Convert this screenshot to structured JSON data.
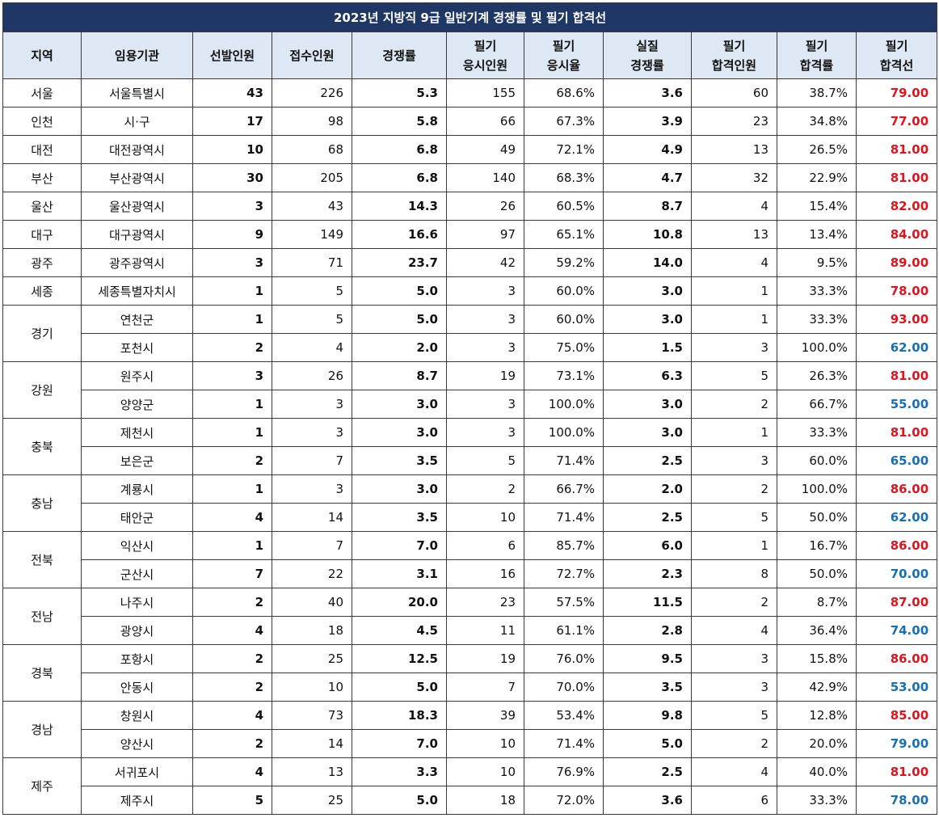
{
  "title": "2023년 지방직 9급 일반기계 경쟁률 및 필기 합격선",
  "headers": [
    [
      "지역"
    ],
    [
      "임용기관"
    ],
    [
      "선발인원"
    ],
    [
      "접수인원"
    ],
    [
      "경쟁률"
    ],
    [
      "필기",
      "응시인원"
    ],
    [
      "필기",
      "응시율"
    ],
    [
      "실질",
      "경쟁률"
    ],
    [
      "필기",
      "합격인원"
    ],
    [
      "필기",
      "합격률"
    ],
    [
      "필기",
      "합격선"
    ]
  ],
  "colors": {
    "title_bg": "#1f3764",
    "header_bg": "#dde8f4",
    "high_cutoff": "#e0141e",
    "low_cutoff": "#1870b4"
  },
  "groups": [
    {
      "region": "서울",
      "rows": [
        {
          "agency": "서울특별시",
          "selected": "43",
          "applied": "226",
          "ratio": "5.3",
          "takers": "155",
          "take_rate": "68.6%",
          "real_ratio": "3.6",
          "passed": "60",
          "pass_rate": "38.7%",
          "cutoff": "79.00",
          "cutoff_tone": "red"
        }
      ]
    },
    {
      "region": "인천",
      "rows": [
        {
          "agency": "시·구",
          "selected": "17",
          "applied": "98",
          "ratio": "5.8",
          "takers": "66",
          "take_rate": "67.3%",
          "real_ratio": "3.9",
          "passed": "23",
          "pass_rate": "34.8%",
          "cutoff": "77.00",
          "cutoff_tone": "red"
        }
      ]
    },
    {
      "region": "대전",
      "rows": [
        {
          "agency": "대전광역시",
          "selected": "10",
          "applied": "68",
          "ratio": "6.8",
          "takers": "49",
          "take_rate": "72.1%",
          "real_ratio": "4.9",
          "passed": "13",
          "pass_rate": "26.5%",
          "cutoff": "81.00",
          "cutoff_tone": "red"
        }
      ]
    },
    {
      "region": "부산",
      "rows": [
        {
          "agency": "부산광역시",
          "selected": "30",
          "applied": "205",
          "ratio": "6.8",
          "takers": "140",
          "take_rate": "68.3%",
          "real_ratio": "4.7",
          "passed": "32",
          "pass_rate": "22.9%",
          "cutoff": "81.00",
          "cutoff_tone": "red"
        }
      ]
    },
    {
      "region": "울산",
      "rows": [
        {
          "agency": "울산광역시",
          "selected": "3",
          "applied": "43",
          "ratio": "14.3",
          "takers": "26",
          "take_rate": "60.5%",
          "real_ratio": "8.7",
          "passed": "4",
          "pass_rate": "15.4%",
          "cutoff": "82.00",
          "cutoff_tone": "red"
        }
      ]
    },
    {
      "region": "대구",
      "rows": [
        {
          "agency": "대구광역시",
          "selected": "9",
          "applied": "149",
          "ratio": "16.6",
          "takers": "97",
          "take_rate": "65.1%",
          "real_ratio": "10.8",
          "passed": "13",
          "pass_rate": "13.4%",
          "cutoff": "84.00",
          "cutoff_tone": "red"
        }
      ]
    },
    {
      "region": "광주",
      "rows": [
        {
          "agency": "광주광역시",
          "selected": "3",
          "applied": "71",
          "ratio": "23.7",
          "takers": "42",
          "take_rate": "59.2%",
          "real_ratio": "14.0",
          "passed": "4",
          "pass_rate": "9.5%",
          "cutoff": "89.00",
          "cutoff_tone": "red"
        }
      ]
    },
    {
      "region": "세종",
      "rows": [
        {
          "agency": "세종특별자치시",
          "selected": "1",
          "applied": "5",
          "ratio": "5.0",
          "takers": "3",
          "take_rate": "60.0%",
          "real_ratio": "3.0",
          "passed": "1",
          "pass_rate": "33.3%",
          "cutoff": "78.00",
          "cutoff_tone": "red"
        }
      ]
    },
    {
      "region": "경기",
      "rows": [
        {
          "agency": "연천군",
          "selected": "1",
          "applied": "5",
          "ratio": "5.0",
          "takers": "3",
          "take_rate": "60.0%",
          "real_ratio": "3.0",
          "passed": "1",
          "pass_rate": "33.3%",
          "cutoff": "93.00",
          "cutoff_tone": "red"
        },
        {
          "agency": "포천시",
          "selected": "2",
          "applied": "4",
          "ratio": "2.0",
          "takers": "3",
          "take_rate": "75.0%",
          "real_ratio": "1.5",
          "passed": "3",
          "pass_rate": "100.0%",
          "cutoff": "62.00",
          "cutoff_tone": "blue"
        }
      ]
    },
    {
      "region": "강원",
      "rows": [
        {
          "agency": "원주시",
          "selected": "3",
          "applied": "26",
          "ratio": "8.7",
          "takers": "19",
          "take_rate": "73.1%",
          "real_ratio": "6.3",
          "passed": "5",
          "pass_rate": "26.3%",
          "cutoff": "81.00",
          "cutoff_tone": "red"
        },
        {
          "agency": "양양군",
          "selected": "1",
          "applied": "3",
          "ratio": "3.0",
          "takers": "3",
          "take_rate": "100.0%",
          "real_ratio": "3.0",
          "passed": "2",
          "pass_rate": "66.7%",
          "cutoff": "55.00",
          "cutoff_tone": "blue"
        }
      ]
    },
    {
      "region": "충북",
      "rows": [
        {
          "agency": "제천시",
          "selected": "1",
          "applied": "3",
          "ratio": "3.0",
          "takers": "3",
          "take_rate": "100.0%",
          "real_ratio": "3.0",
          "passed": "1",
          "pass_rate": "33.3%",
          "cutoff": "81.00",
          "cutoff_tone": "red"
        },
        {
          "agency": "보은군",
          "selected": "2",
          "applied": "7",
          "ratio": "3.5",
          "takers": "5",
          "take_rate": "71.4%",
          "real_ratio": "2.5",
          "passed": "3",
          "pass_rate": "60.0%",
          "cutoff": "65.00",
          "cutoff_tone": "blue"
        }
      ]
    },
    {
      "region": "충남",
      "rows": [
        {
          "agency": "계룡시",
          "selected": "1",
          "applied": "3",
          "ratio": "3.0",
          "takers": "2",
          "take_rate": "66.7%",
          "real_ratio": "2.0",
          "passed": "2",
          "pass_rate": "100.0%",
          "cutoff": "86.00",
          "cutoff_tone": "red"
        },
        {
          "agency": "태안군",
          "selected": "4",
          "applied": "14",
          "ratio": "3.5",
          "takers": "10",
          "take_rate": "71.4%",
          "real_ratio": "2.5",
          "passed": "5",
          "pass_rate": "50.0%",
          "cutoff": "62.00",
          "cutoff_tone": "blue"
        }
      ]
    },
    {
      "region": "전북",
      "rows": [
        {
          "agency": "익산시",
          "selected": "1",
          "applied": "7",
          "ratio": "7.0",
          "takers": "6",
          "take_rate": "85.7%",
          "real_ratio": "6.0",
          "passed": "1",
          "pass_rate": "16.7%",
          "cutoff": "86.00",
          "cutoff_tone": "red"
        },
        {
          "agency": "군산시",
          "selected": "7",
          "applied": "22",
          "ratio": "3.1",
          "takers": "16",
          "take_rate": "72.7%",
          "real_ratio": "2.3",
          "passed": "8",
          "pass_rate": "50.0%",
          "cutoff": "70.00",
          "cutoff_tone": "blue"
        }
      ]
    },
    {
      "region": "전남",
      "rows": [
        {
          "agency": "나주시",
          "selected": "2",
          "applied": "40",
          "ratio": "20.0",
          "takers": "23",
          "take_rate": "57.5%",
          "real_ratio": "11.5",
          "passed": "2",
          "pass_rate": "8.7%",
          "cutoff": "87.00",
          "cutoff_tone": "red"
        },
        {
          "agency": "광양시",
          "selected": "4",
          "applied": "18",
          "ratio": "4.5",
          "takers": "11",
          "take_rate": "61.1%",
          "real_ratio": "2.8",
          "passed": "4",
          "pass_rate": "36.4%",
          "cutoff": "74.00",
          "cutoff_tone": "blue"
        }
      ]
    },
    {
      "region": "경북",
      "rows": [
        {
          "agency": "포항시",
          "selected": "2",
          "applied": "25",
          "ratio": "12.5",
          "takers": "19",
          "take_rate": "76.0%",
          "real_ratio": "9.5",
          "passed": "3",
          "pass_rate": "15.8%",
          "cutoff": "86.00",
          "cutoff_tone": "red"
        },
        {
          "agency": "안동시",
          "selected": "2",
          "applied": "10",
          "ratio": "5.0",
          "takers": "7",
          "take_rate": "70.0%",
          "real_ratio": "3.5",
          "passed": "3",
          "pass_rate": "42.9%",
          "cutoff": "53.00",
          "cutoff_tone": "blue"
        }
      ]
    },
    {
      "region": "경남",
      "rows": [
        {
          "agency": "창원시",
          "selected": "4",
          "applied": "73",
          "ratio": "18.3",
          "takers": "39",
          "take_rate": "53.4%",
          "real_ratio": "9.8",
          "passed": "5",
          "pass_rate": "12.8%",
          "cutoff": "85.00",
          "cutoff_tone": "red"
        },
        {
          "agency": "양산시",
          "selected": "2",
          "applied": "14",
          "ratio": "7.0",
          "takers": "10",
          "take_rate": "71.4%",
          "real_ratio": "5.0",
          "passed": "2",
          "pass_rate": "20.0%",
          "cutoff": "79.00",
          "cutoff_tone": "blue"
        }
      ]
    },
    {
      "region": "제주",
      "rows": [
        {
          "agency": "서귀포시",
          "selected": "4",
          "applied": "13",
          "ratio": "3.3",
          "takers": "10",
          "take_rate": "76.9%",
          "real_ratio": "2.5",
          "passed": "4",
          "pass_rate": "40.0%",
          "cutoff": "81.00",
          "cutoff_tone": "red"
        },
        {
          "agency": "제주시",
          "selected": "5",
          "applied": "25",
          "ratio": "5.0",
          "takers": "18",
          "take_rate": "72.0%",
          "real_ratio": "3.6",
          "passed": "6",
          "pass_rate": "33.3%",
          "cutoff": "78.00",
          "cutoff_tone": "blue"
        }
      ]
    }
  ]
}
